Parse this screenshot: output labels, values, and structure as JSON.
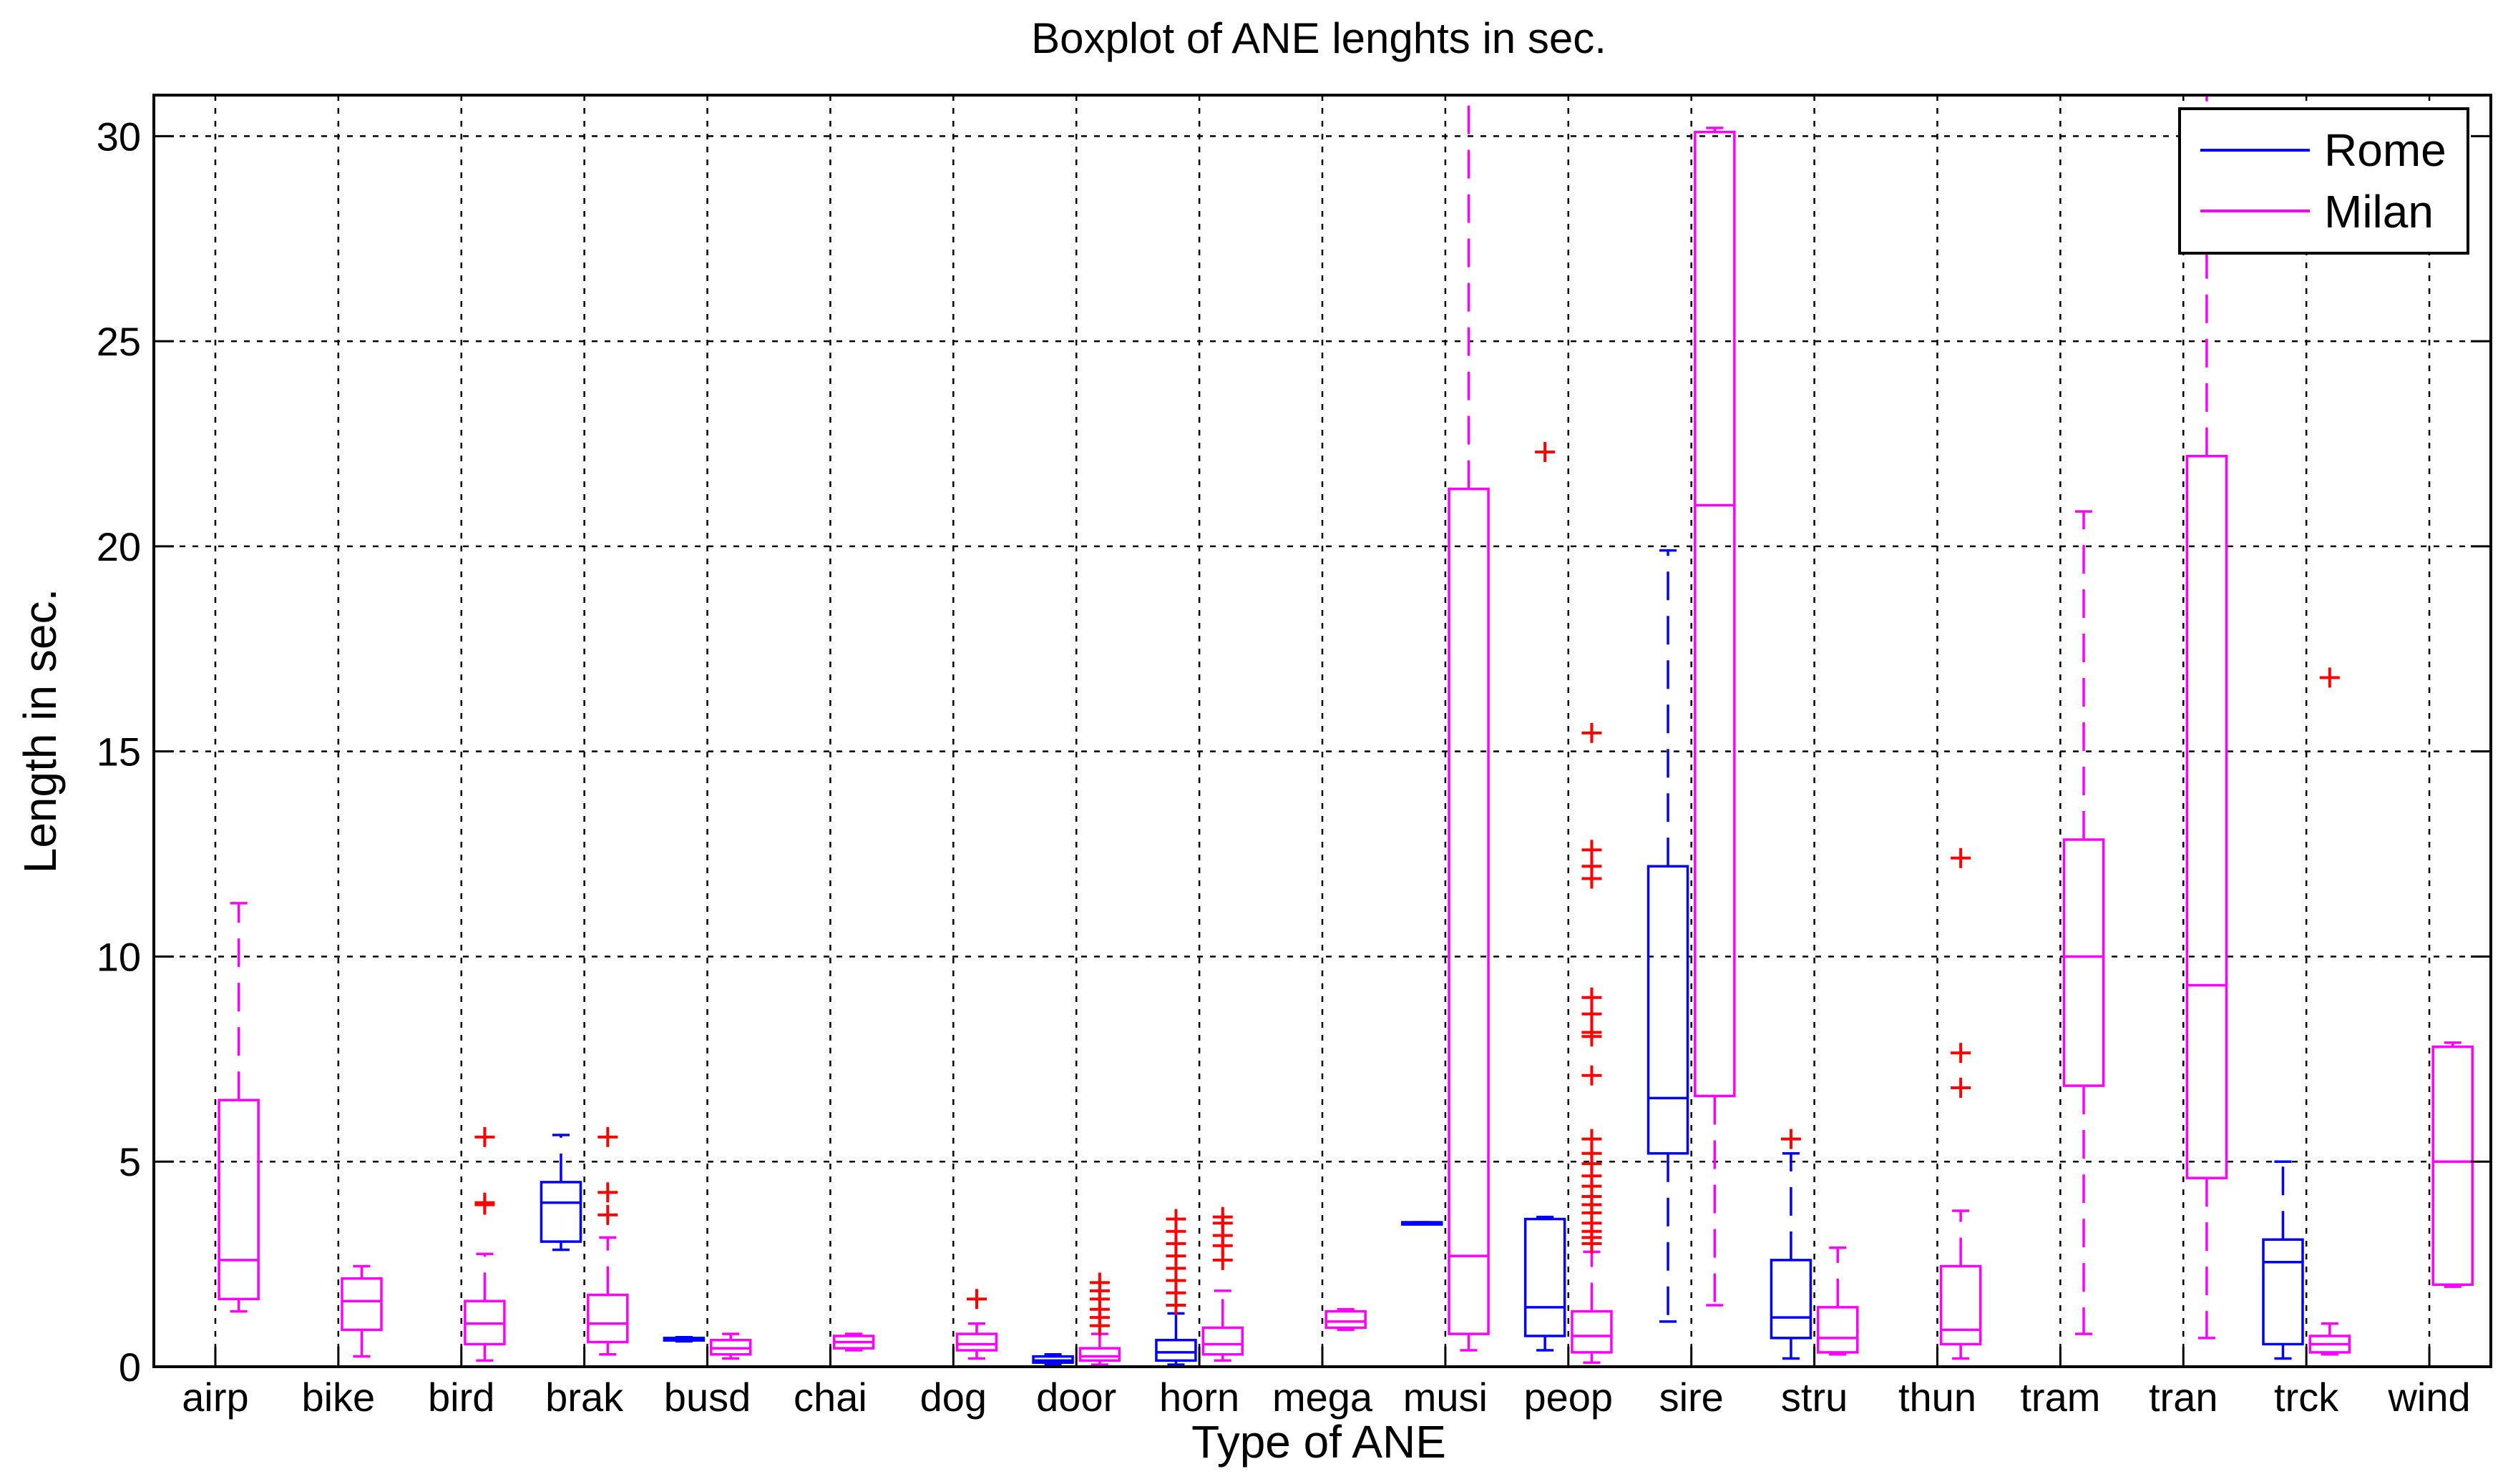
{
  "chart_data": {
    "type": "boxplot",
    "title": "Boxplot of ANE lenghts in sec.",
    "xlabel": "Type of ANE",
    "ylabel": "Length in sec.",
    "ylim": [
      0,
      31
    ],
    "yticks": [
      0,
      5,
      10,
      15,
      20,
      25,
      30
    ],
    "categories": [
      "airp",
      "bike",
      "bird",
      "brak",
      "busd",
      "chai",
      "dog",
      "door",
      "horn",
      "mega",
      "musi",
      "peop",
      "sire",
      "stru",
      "thun",
      "tram",
      "tran",
      "trck",
      "wind"
    ],
    "grid": true,
    "legend_position": "top-right",
    "outlier_color": "#ff0000",
    "series": [
      {
        "name": "Rome",
        "color": "#0000ff",
        "boxes": [
          {
            "category": "brak",
            "whisker_low": 2.85,
            "q1": 3.05,
            "median": 4.0,
            "q3": 4.5,
            "whisker_high": 5.65,
            "outliers": []
          },
          {
            "category": "busd",
            "whisker_low": 0.62,
            "q1": 0.64,
            "median": 0.66,
            "q3": 0.7,
            "whisker_high": 0.72,
            "outliers": []
          },
          {
            "category": "door",
            "whisker_low": 0.05,
            "q1": 0.1,
            "median": 0.15,
            "q3": 0.25,
            "whisker_high": 0.3,
            "outliers": []
          },
          {
            "category": "horn",
            "whisker_low": 0.05,
            "q1": 0.15,
            "median": 0.35,
            "q3": 0.65,
            "whisker_high": 1.3,
            "outliers": [
              1.5,
              1.8,
              2.1,
              2.4,
              2.7,
              3.0,
              3.3,
              3.6
            ]
          },
          {
            "category": "musi",
            "whisker_low": 3.52,
            "q1": 3.52,
            "median": 3.52,
            "q3": 3.52,
            "whisker_high": 3.52,
            "outliers": []
          },
          {
            "category": "peop",
            "whisker_low": 0.4,
            "q1": 0.75,
            "median": 1.45,
            "q3": 3.6,
            "whisker_high": 3.65,
            "outliers": [
              22.3
            ]
          },
          {
            "category": "sire",
            "whisker_low": 1.1,
            "q1": 5.2,
            "median": 6.55,
            "q3": 12.2,
            "whisker_high": 19.9,
            "outliers": []
          },
          {
            "category": "stru",
            "whisker_low": 0.2,
            "q1": 0.7,
            "median": 1.2,
            "q3": 2.6,
            "whisker_high": 5.2,
            "outliers": [
              5.55
            ]
          },
          {
            "category": "trck",
            "whisker_low": 0.2,
            "q1": 0.55,
            "median": 2.55,
            "q3": 3.1,
            "whisker_high": 5.0,
            "outliers": []
          }
        ]
      },
      {
        "name": "Milan",
        "color": "#ff00ff",
        "boxes": [
          {
            "category": "airp",
            "whisker_low": 1.35,
            "q1": 1.65,
            "median": 2.6,
            "q3": 6.5,
            "whisker_high": 11.3,
            "outliers": []
          },
          {
            "category": "bike",
            "whisker_low": 0.25,
            "q1": 0.9,
            "median": 1.6,
            "q3": 2.15,
            "whisker_high": 2.45,
            "outliers": []
          },
          {
            "category": "bird",
            "whisker_low": 0.15,
            "q1": 0.55,
            "median": 1.05,
            "q3": 1.6,
            "whisker_high": 2.75,
            "outliers": [
              3.95,
              4.0,
              5.6
            ]
          },
          {
            "category": "brak",
            "whisker_low": 0.3,
            "q1": 0.6,
            "median": 1.05,
            "q3": 1.75,
            "whisker_high": 3.15,
            "outliers": [
              3.7,
              4.25,
              5.6
            ]
          },
          {
            "category": "busd",
            "whisker_low": 0.2,
            "q1": 0.3,
            "median": 0.45,
            "q3": 0.65,
            "whisker_high": 0.8,
            "outliers": []
          },
          {
            "category": "chai",
            "whisker_low": 0.4,
            "q1": 0.45,
            "median": 0.6,
            "q3": 0.75,
            "whisker_high": 0.8,
            "outliers": []
          },
          {
            "category": "dog",
            "whisker_low": 0.2,
            "q1": 0.4,
            "median": 0.55,
            "q3": 0.8,
            "whisker_high": 1.05,
            "outliers": [
              1.65
            ]
          },
          {
            "category": "door",
            "whisker_low": 0.05,
            "q1": 0.15,
            "median": 0.25,
            "q3": 0.45,
            "whisker_high": 0.8,
            "outliers": [
              1.0,
              1.2,
              1.4,
              1.65,
              1.85,
              2.05
            ]
          },
          {
            "category": "horn",
            "whisker_low": 0.15,
            "q1": 0.3,
            "median": 0.55,
            "q3": 0.95,
            "whisker_high": 1.85,
            "outliers": [
              2.6,
              2.95,
              3.2,
              3.5,
              3.65
            ]
          },
          {
            "category": "mega",
            "whisker_low": 0.9,
            "q1": 0.95,
            "median": 1.1,
            "q3": 1.35,
            "whisker_high": 1.4,
            "outliers": []
          },
          {
            "category": "musi",
            "whisker_low": 0.4,
            "q1": 0.8,
            "median": 2.7,
            "q3": 21.4,
            "whisker_high": 31.0,
            "outliers": []
          },
          {
            "category": "peop",
            "whisker_low": 0.1,
            "q1": 0.35,
            "median": 0.75,
            "q3": 1.35,
            "whisker_high": 2.8,
            "outliers": [
              3.0,
              3.15,
              3.3,
              3.5,
              3.75,
              3.95,
              4.15,
              4.4,
              4.65,
              4.95,
              5.2,
              5.55,
              7.1,
              8.05,
              8.15,
              8.6,
              9.0,
              11.9,
              12.2,
              12.6,
              15.45
            ]
          },
          {
            "category": "sire",
            "whisker_low": 1.5,
            "q1": 6.6,
            "median": 21.0,
            "q3": 30.1,
            "whisker_high": 30.2,
            "outliers": []
          },
          {
            "category": "stru",
            "whisker_low": 0.3,
            "q1": 0.35,
            "median": 0.7,
            "q3": 1.45,
            "whisker_high": 2.9,
            "outliers": []
          },
          {
            "category": "thun",
            "whisker_low": 0.2,
            "q1": 0.55,
            "median": 0.9,
            "q3": 2.45,
            "whisker_high": 3.8,
            "outliers": [
              6.8,
              7.65,
              12.4
            ]
          },
          {
            "category": "tram",
            "whisker_low": 0.8,
            "q1": 6.85,
            "median": 10.0,
            "q3": 12.85,
            "whisker_high": 20.85,
            "outliers": []
          },
          {
            "category": "tran",
            "whisker_low": 0.7,
            "q1": 4.6,
            "median": 9.3,
            "q3": 22.2,
            "whisker_high": 31.0,
            "outliers": []
          },
          {
            "category": "trck",
            "whisker_low": 0.3,
            "q1": 0.35,
            "median": 0.55,
            "q3": 0.75,
            "whisker_high": 1.05,
            "outliers": [
              16.8
            ]
          },
          {
            "category": "wind",
            "whisker_low": 1.95,
            "q1": 2.0,
            "median": 5.0,
            "q3": 7.8,
            "whisker_high": 7.9,
            "outliers": []
          }
        ]
      }
    ]
  }
}
